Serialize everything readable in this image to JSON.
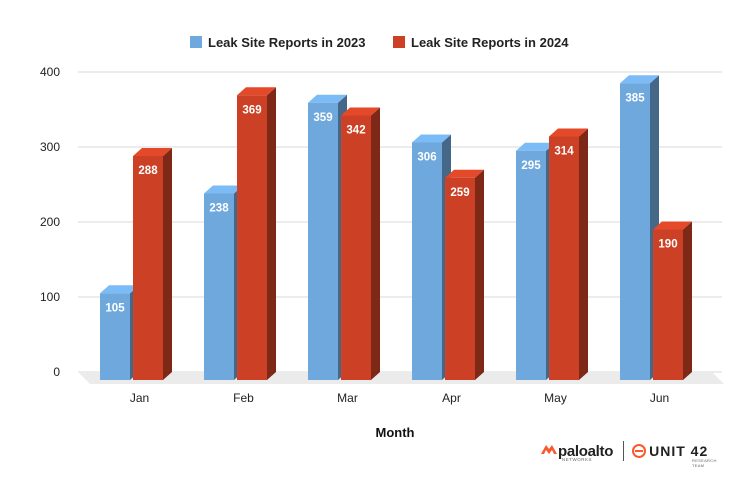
{
  "chart_data": {
    "type": "bar",
    "title": "",
    "xlabel": "Month",
    "ylabel": "",
    "ylim": [
      0,
      400
    ],
    "yticks": [
      0,
      100,
      200,
      300,
      400
    ],
    "categories": [
      "Jan",
      "Feb",
      "Mar",
      "Apr",
      "May",
      "Jun"
    ],
    "series": [
      {
        "name": "Leak Site Reports in 2023",
        "values": [
          105,
          238,
          359,
          306,
          295,
          385
        ],
        "color": "#6fa8dc"
      },
      {
        "name": "Leak Site Reports in 2024",
        "values": [
          288,
          369,
          342,
          259,
          314,
          190
        ],
        "color": "#cc4125"
      }
    ],
    "legend": "top",
    "grid": true,
    "style": "3d-bars"
  },
  "branding": {
    "paloalto": "paloalto",
    "paloalto_sub": "NETWORKS",
    "unit42": "UNIT 42",
    "unit42_sub": "RESEARCH TEAM"
  },
  "colors": {
    "series_2023": "#6fa8dc",
    "series_2024": "#cc4125",
    "grid": "#d9d9d9",
    "text": "#000000"
  }
}
